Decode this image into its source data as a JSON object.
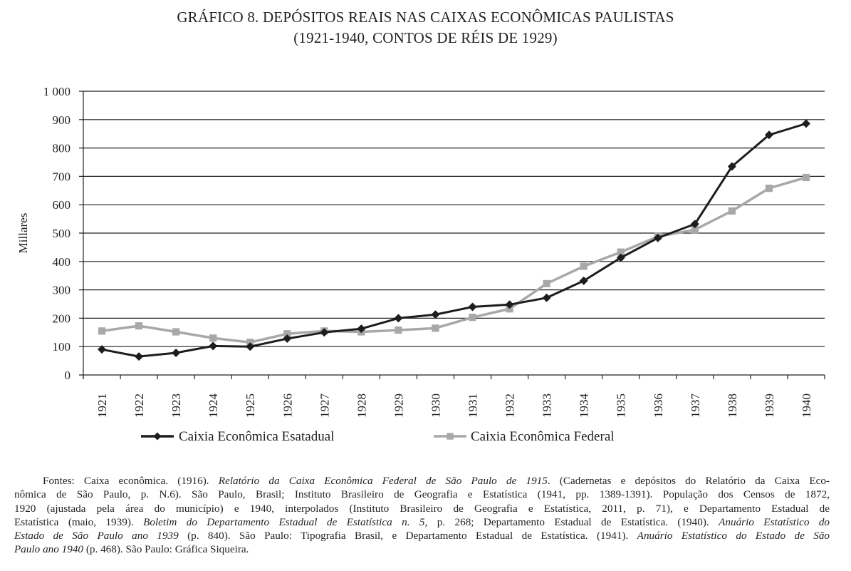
{
  "title": "GRÁFICO 8. DEPÓSITOS REAIS NAS CAIXAS ECONÔMICAS PAULISTAS",
  "subtitle": "(1921-1940, CONTOS DE RÉIS DE 1929)",
  "chart_data": {
    "type": "line",
    "title": "GRÁFICO 8. DEPÓSITOS REAIS NAS CAIXAS ECONÔMICAS PAULISTAS",
    "subtitle": "(1921-1940, CONTOS DE RÉIS DE 1929)",
    "xlabel": "",
    "ylabel": "Millares",
    "ylim": [
      0,
      1000
    ],
    "yticks": [
      0,
      100,
      200,
      300,
      400,
      500,
      600,
      700,
      800,
      900,
      1000
    ],
    "ytick_labels": [
      "0",
      "100",
      "200",
      "300",
      "400",
      "500",
      "600",
      "700",
      "800",
      "900",
      "1 000"
    ],
    "grid": true,
    "legend": "bottom",
    "categories": [
      "1921",
      "1922",
      "1923",
      "1924",
      "1925",
      "1926",
      "1927",
      "1928",
      "1929",
      "1930",
      "1931",
      "1932",
      "1933",
      "1934",
      "1935",
      "1936",
      "1937",
      "1938",
      "1939",
      "1940"
    ],
    "series": [
      {
        "name": "Caixia Econômica Esatadual",
        "color": "#1e1c1d",
        "marker": "diamond",
        "values": [
          90,
          65,
          78,
          102,
          100,
          128,
          150,
          163,
          200,
          213,
          240,
          248,
          272,
          332,
          413,
          483,
          532,
          735,
          846,
          886
        ]
      },
      {
        "name": "Caixia Econômica Federal",
        "color": "#a8a8a8",
        "marker": "square",
        "values": [
          155,
          173,
          152,
          130,
          115,
          145,
          155,
          152,
          158,
          165,
          203,
          233,
          322,
          383,
          433,
          488,
          512,
          578,
          658,
          696
        ]
      }
    ]
  },
  "footnote": {
    "l1a": "Fontes: Caixa econômica. (1916). ",
    "l1b": "Relatório da Caixa Econômica Federal de São Paulo de 1915",
    "l1c": ". (Cadernetas e depósitos do Relatório da Caixa Eco-",
    "l2": "nômica de São Paulo, p. N.6). São Paulo, Brasil; Instituto Brasileiro de Geografia e Estatística (1941, pp. 1389-1391). População dos Censos de 1872,",
    "l3": "1920 (ajustada pela área do município) e 1940, interpolados (Instituto Brasileiro de Geografia e Estatística, 2011, p. 71), e Departamento Estadual de",
    "l4a": "Estatística (maio, 1939). ",
    "l4b": "Boletim do Departamento Estadual de Estatística n. 5,",
    "l4c": " p. 268; Departamento Estadual de Estatística. (1940). ",
    "l4d": "Anuário Estatístico do",
    "l5a": "Estado de São Paulo ano 1939",
    "l5b": " (p. 840). São Paulo: Tipografia Brasil, e Departamento Estadual de Estatística. (1941). ",
    "l5c": "Anuário Estatístico do Estado de São",
    "l6a": "Paulo ano 1940",
    "l6b": " (p. 468). São Paulo: Gráfica Siqueira."
  }
}
